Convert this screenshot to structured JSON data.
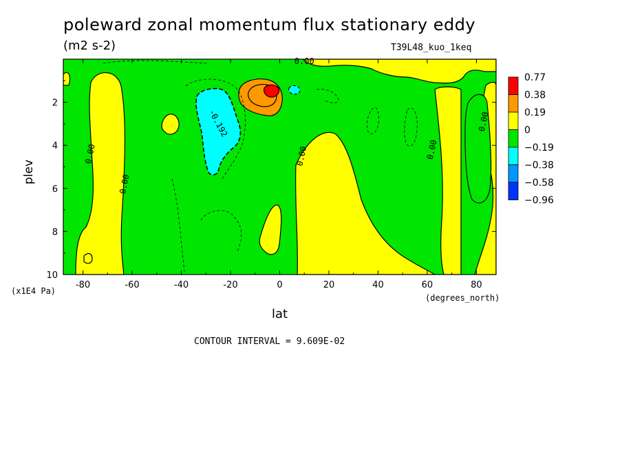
{
  "chart_data": {
    "type": "heatmap",
    "title": "poleward zonal momentum flux stationary eddy",
    "units": "(m2 s-2)",
    "run_id": "T39L48_kuo_1keq",
    "xlabel": "lat",
    "xunits": "(degrees_north)",
    "ylabel": "plev",
    "yunits": "(x1E4 Pa)",
    "footer": "CONTOUR INTERVAL = 9.609E-02",
    "xlim": [
      -88,
      88
    ],
    "ylim": [
      10,
      0
    ],
    "x_ticks": [
      "-80",
      "-60",
      "-40",
      "-20",
      "0",
      "20",
      "40",
      "60",
      "80"
    ],
    "y_ticks": [
      "2",
      "4",
      "6",
      "8",
      "10"
    ],
    "colorbar": {
      "labels": [
        "0.77",
        "0.38",
        "0.19",
        "0",
        "−0.19",
        "−0.38",
        "−0.58",
        "−0.96"
      ],
      "colors": [
        "#ff0000",
        "#ff9900",
        "#ffff00",
        "#00e600",
        "#00ffff",
        "#0099ff",
        "#0033ff"
      ]
    },
    "contour_labels": [
      {
        "text": "0.00",
        "lat": 10,
        "plev": 0.1
      },
      {
        "text": "-0.192",
        "lat": -26,
        "plev": 2.9
      },
      {
        "text": "0.00",
        "lat": -76,
        "plev": 4.3
      },
      {
        "text": "0.00",
        "lat": -62,
        "plev": 5.7
      },
      {
        "text": "0.00",
        "lat": 10,
        "plev": 4.4
      },
      {
        "text": "0.00",
        "lat": 63,
        "plev": 4.1
      },
      {
        "text": "0.00",
        "lat": 84,
        "plev": 2.8
      }
    ]
  }
}
